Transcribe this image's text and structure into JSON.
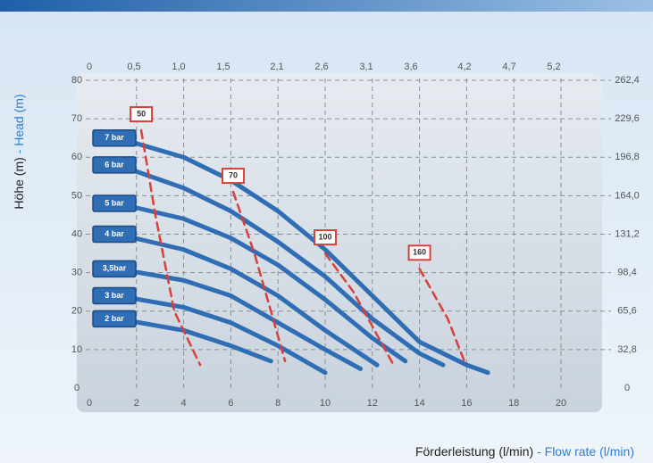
{
  "chart_data": {
    "type": "line",
    "y_label": [
      "Höhe (m)",
      " - Head (m)"
    ],
    "x_label": [
      "Förderleistung (l/min)",
      " - Flow rate (l/min)"
    ],
    "xlim": [
      0,
      20
    ],
    "xticks": [
      0,
      2,
      4,
      6,
      8,
      10,
      12,
      14,
      16,
      18,
      20
    ],
    "ylim": [
      0,
      80
    ],
    "yticks": [
      0,
      10,
      20,
      30,
      40,
      50,
      60,
      70,
      80
    ],
    "x2lim": [
      0,
      5.28
    ],
    "x2ticks": [
      0,
      {
        "value": 0.5,
        "label": "0,5"
      },
      {
        "value": 1.0,
        "label": "1,0"
      },
      {
        "value": 1.5,
        "label": "1,5"
      },
      {
        "value": 2.1,
        "label": "2,1"
      },
      {
        "value": 2.6,
        "label": "2,6"
      },
      {
        "value": 3.1,
        "label": "3,1"
      },
      {
        "value": 3.6,
        "label": "3,6"
      },
      {
        "value": 4.2,
        "label": "4,2"
      },
      {
        "value": 4.7,
        "label": "4,7"
      },
      {
        "value": 5.2,
        "label": "5,2"
      }
    ],
    "y2lim": [
      0,
      262.4
    ],
    "y2ticks": [
      0,
      {
        "value": 32.8,
        "label": "32,8"
      },
      {
        "value": 65.6,
        "label": "65,6"
      },
      {
        "value": 98.4,
        "label": "98,4"
      },
      {
        "value": 131.2,
        "label": "131,2"
      },
      {
        "value": 164.0,
        "label": "164,0"
      },
      {
        "value": 196.8,
        "label": "196,8"
      },
      {
        "value": 229.6,
        "label": "229,6"
      },
      {
        "value": 262.4,
        "label": "262,4"
      }
    ],
    "grid": true,
    "series": [
      {
        "name": "7 bar",
        "color": "#2f6db5",
        "x": [
          1.2,
          4,
          6,
          8,
          10,
          12,
          14,
          16,
          16.9
        ],
        "values": [
          65,
          60,
          54,
          46,
          36,
          24,
          12,
          6,
          4
        ]
      },
      {
        "name": "6 bar",
        "color": "#2f6db5",
        "x": [
          1.2,
          4,
          6,
          8,
          10,
          12,
          14,
          15
        ],
        "values": [
          58,
          52,
          46,
          38,
          29,
          18,
          9,
          6
        ]
      },
      {
        "name": "5 bar",
        "color": "#2f6db5",
        "x": [
          1.2,
          4,
          6,
          8,
          10,
          12,
          13.4
        ],
        "values": [
          48,
          44,
          39,
          32,
          23,
          13,
          7
        ]
      },
      {
        "name": "4 bar",
        "color": "#2f6db5",
        "x": [
          1.2,
          4,
          6,
          8,
          10,
          12.2
        ],
        "values": [
          40,
          36,
          31,
          24,
          15,
          6
        ]
      },
      {
        "name": "3,5bar",
        "color": "#2f6db5",
        "x": [
          1.2,
          4,
          6,
          8,
          10,
          11.5
        ],
        "values": [
          31,
          28,
          24,
          17,
          10,
          5
        ]
      },
      {
        "name": "3 bar",
        "color": "#2f6db5",
        "x": [
          1.2,
          4,
          6,
          8,
          10
        ],
        "values": [
          24,
          21,
          17,
          11,
          4
        ]
      },
      {
        "name": "2 bar",
        "color": "#2f6db5",
        "x": [
          1.2,
          4,
          6,
          7.7
        ],
        "values": [
          18,
          15,
          11,
          7
        ]
      },
      {
        "name": "50",
        "color": "#d9403a",
        "dashed": true,
        "x": [
          2.2,
          2.8,
          3.6,
          4.7
        ],
        "values": [
          67,
          45,
          20,
          6
        ]
      },
      {
        "name": "70",
        "color": "#d9403a",
        "dashed": true,
        "x": [
          6.1,
          7,
          7.7,
          8.3
        ],
        "values": [
          51,
          35,
          20,
          7
        ]
      },
      {
        "name": "100",
        "color": "#d9403a",
        "dashed": true,
        "x": [
          10,
          11.2,
          12.9
        ],
        "values": [
          35,
          25,
          6
        ]
      },
      {
        "name": "160",
        "color": "#d9403a",
        "dashed": true,
        "x": [
          14,
          15.2,
          15.9
        ],
        "values": [
          31,
          18,
          7
        ]
      }
    ]
  }
}
